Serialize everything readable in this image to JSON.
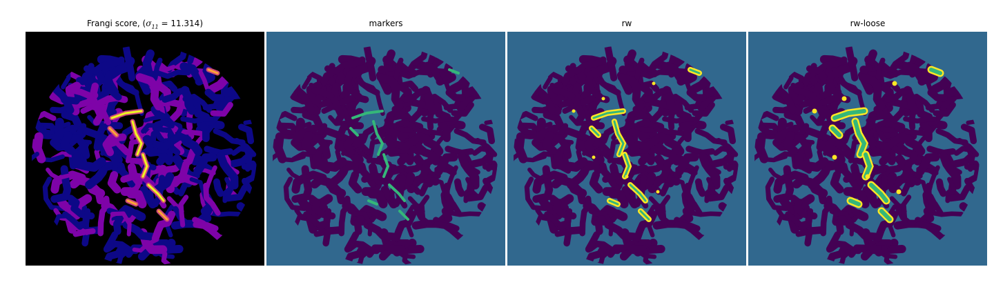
{
  "figure": {
    "panels": [
      {
        "id": "frangi",
        "title_prefix": "Frangi score, (",
        "title_symbol": "σ",
        "title_subscript": "11",
        "title_suffix": " = 11.314)",
        "background": "#000000",
        "colormap": "plasma",
        "colors": {
          "low": "#0d0887",
          "mid": "#7e03a8",
          "high": "#cc4778",
          "peak": "#f0f921"
        }
      },
      {
        "id": "markers",
        "title": "markers",
        "background": "#31688e",
        "colors": {
          "blob": "#440154",
          "marker": "#35b779"
        }
      },
      {
        "id": "rw",
        "title": "rw",
        "background": "#31688e",
        "colors": {
          "blob": "#440154",
          "label": "#35b779",
          "edge": "#fde725"
        }
      },
      {
        "id": "rw-loose",
        "title": "rw-loose",
        "background": "#31688e",
        "colors": {
          "blob": "#440154",
          "label": "#35b779",
          "edge": "#fde725"
        }
      }
    ]
  }
}
